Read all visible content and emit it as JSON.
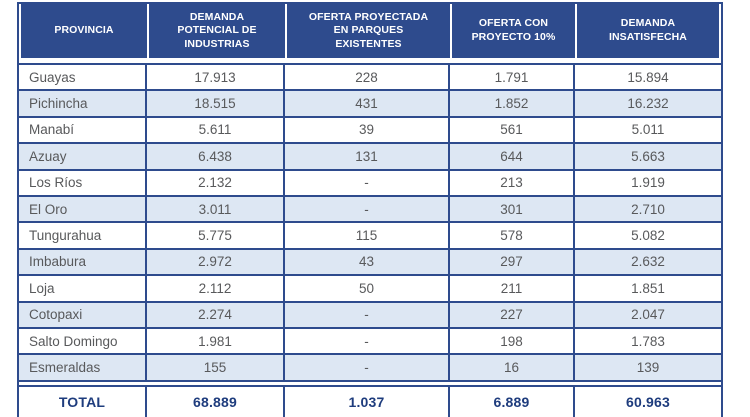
{
  "colors": {
    "header_bg": "#2e4b8d",
    "grid_line": "#2e4b8d",
    "alt_row_bg": "#dde7f3",
    "header_text": "#ffffff",
    "body_text": "#58595b",
    "total_text": "#1e3c7d"
  },
  "table": {
    "columns": [
      "PROVINCIA",
      "DEMANDA\nPOTENCIAL DE\nINDUSTRIAS",
      "OFERTA PROYECTADA\nEN PARQUES\nEXISTENTES",
      "OFERTA CON\nPROYECTO 10%",
      "DEMANDA\nINSATISFECHA"
    ],
    "rows": [
      [
        "Guayas",
        "17.913",
        "228",
        "1.791",
        "15.894"
      ],
      [
        "Pichincha",
        "18.515",
        "431",
        "1.852",
        "16.232"
      ],
      [
        "Manabí",
        "5.611",
        "39",
        "561",
        "5.011"
      ],
      [
        "Azuay",
        "6.438",
        "131",
        "644",
        "5.663"
      ],
      [
        "Los Ríos",
        "2.132",
        "-",
        "213",
        "1.919"
      ],
      [
        "El Oro",
        "3.011",
        "-",
        "301",
        "2.710"
      ],
      [
        "Tungurahua",
        "5.775",
        "115",
        "578",
        "5.082"
      ],
      [
        "Imbabura",
        "2.972",
        "43",
        "297",
        "2.632"
      ],
      [
        "Loja",
        "2.112",
        "50",
        "211",
        "1.851"
      ],
      [
        "Cotopaxi",
        "2.274",
        "-",
        "227",
        "2.047"
      ],
      [
        "Salto Domingo",
        "1.981",
        "-",
        "198",
        "1.783"
      ],
      [
        "Esmeraldas",
        "155",
        "-",
        "16",
        "139"
      ]
    ],
    "total": [
      "TOTAL",
      "68.889",
      "1.037",
      "6.889",
      "60.963"
    ]
  }
}
